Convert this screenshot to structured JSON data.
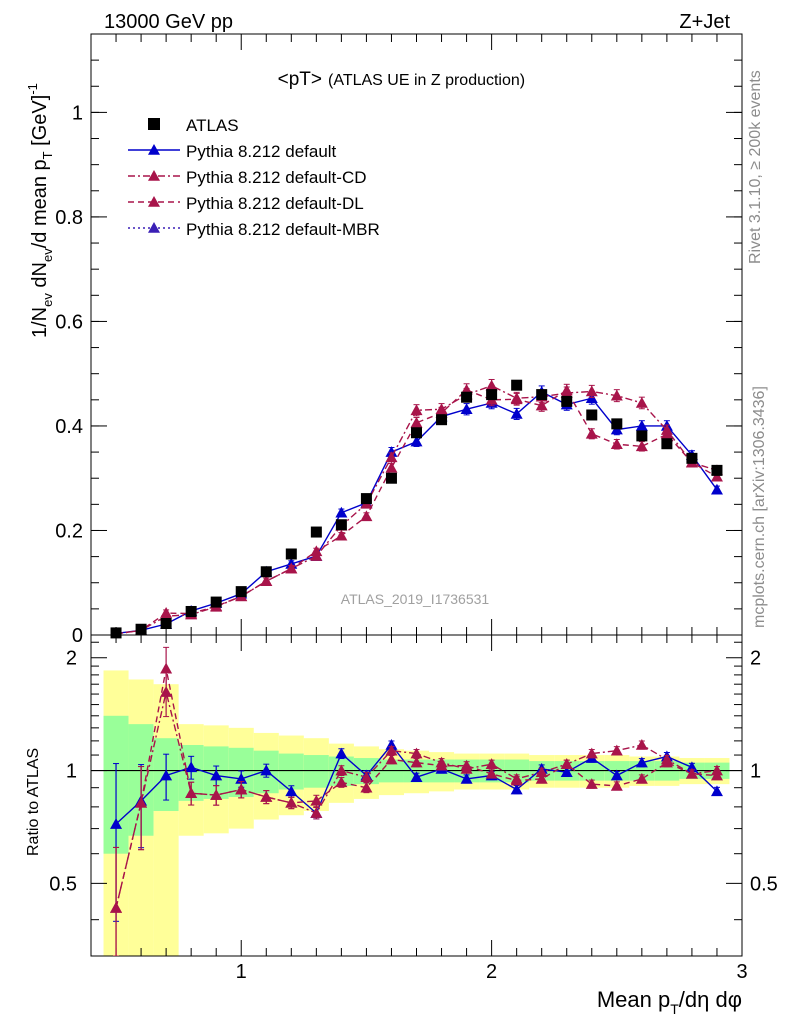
{
  "header": {
    "left": "13000 GeV pp",
    "right": "Z+Jet"
  },
  "side_labels": {
    "rivet": "Rivet 3.1.10, ≥ 200k events",
    "mcplots": "mcplots.cern.ch [arXiv:1306.3436]"
  },
  "chart_data": {
    "type": "scatter",
    "title": "<pT> (ATLAS UE in Z production)",
    "title_main": "<pT>",
    "title_sub": "(ATLAS UE in Z production)",
    "analysis_id": "ATLAS_2019_I1736531",
    "xlabel": "Mean p_T/dη dφ",
    "ylabel": "1/N_ev dN_ev/d mean p_T [GeV]^-1",
    "ratio_ylabel": "Ratio to ATLAS",
    "xlim": [
      0.4,
      3.0
    ],
    "ylim": [
      0,
      1.15
    ],
    "ratio_ylim": [
      0.32,
      2.3
    ],
    "x_ticks": [
      "1",
      "2",
      "3"
    ],
    "y_ticks": [
      "0",
      "0.2",
      "0.4",
      "0.6",
      "0.8",
      "1"
    ],
    "ratio_ticks": [
      "0.5",
      "1",
      "2"
    ],
    "legend_position": "top-left",
    "x": [
      0.5,
      0.6,
      0.7,
      0.8,
      0.9,
      1.0,
      1.1,
      1.2,
      1.3,
      1.4,
      1.5,
      1.6,
      1.7,
      1.8,
      1.9,
      2.0,
      2.1,
      2.2,
      2.3,
      2.4,
      2.5,
      2.6,
      2.7,
      2.8,
      2.9
    ],
    "atlas": {
      "name": "ATLAS",
      "color": "#000000",
      "values": [
        0.004,
        0.011,
        0.022,
        0.045,
        0.063,
        0.083,
        0.121,
        0.155,
        0.197,
        0.211,
        0.261,
        0.3,
        0.387,
        0.412,
        0.455,
        0.46,
        0.478,
        0.46,
        0.447,
        0.421,
        0.404,
        0.381,
        0.366,
        0.338,
        0.315
      ],
      "band_inner": [
        0.4,
        0.33,
        0.22,
        0.17,
        0.16,
        0.15,
        0.13,
        0.11,
        0.1,
        0.09,
        0.08,
        0.07,
        0.07,
        0.07,
        0.07,
        0.07,
        0.07,
        0.06,
        0.06,
        0.06,
        0.06,
        0.06,
        0.06,
        0.05,
        0.05
      ],
      "band_outer": [
        0.85,
        0.75,
        0.7,
        0.33,
        0.32,
        0.3,
        0.26,
        0.24,
        0.22,
        0.18,
        0.16,
        0.14,
        0.13,
        0.12,
        0.11,
        0.11,
        0.11,
        0.1,
        0.1,
        0.1,
        0.1,
        0.09,
        0.09,
        0.08,
        0.08
      ]
    },
    "series": [
      {
        "name": "Pythia 8.212 default",
        "color": "#0000cc",
        "dash": "solid",
        "values": [
          0.003,
          0.009,
          0.021,
          0.046,
          0.061,
          0.079,
          0.121,
          0.136,
          0.151,
          0.234,
          0.253,
          0.35,
          0.37,
          0.418,
          0.432,
          0.444,
          0.423,
          0.465,
          0.441,
          0.453,
          0.393,
          0.4,
          0.4,
          0.344,
          0.278
        ],
        "ratio": [
          0.72,
          0.83,
          0.97,
          1.02,
          0.97,
          0.95,
          1.0,
          0.88,
          0.77,
          1.11,
          0.97,
          1.17,
          0.96,
          1.01,
          0.95,
          0.97,
          0.89,
          1.01,
          0.99,
          1.08,
          0.97,
          1.05,
          1.09,
          1.02,
          0.88
        ]
      },
      {
        "name": "Pythia 8.212 default-CD",
        "color": "#a8144a",
        "dash": "dashdot",
        "values": [
          0.002,
          0.009,
          0.036,
          0.039,
          0.054,
          0.074,
          0.103,
          0.127,
          0.151,
          0.209,
          0.251,
          0.34,
          0.43,
          0.432,
          0.46,
          0.477,
          0.453,
          0.456,
          0.463,
          0.466,
          0.458,
          0.444,
          0.392,
          0.33,
          0.315
        ],
        "ratio": [
          0.43,
          0.82,
          1.62,
          0.87,
          0.86,
          0.89,
          0.85,
          0.82,
          0.77,
          1.0,
          0.96,
          1.13,
          1.11,
          1.05,
          1.01,
          1.04,
          0.95,
          0.99,
          1.04,
          1.11,
          1.13,
          1.17,
          1.07,
          0.98,
          1.0
        ]
      },
      {
        "name": "Pythia 8.212 default-DL",
        "color": "#a8144a",
        "dash": "dashed",
        "values": [
          0.002,
          0.009,
          0.042,
          0.041,
          0.055,
          0.074,
          0.103,
          0.127,
          0.16,
          0.19,
          0.227,
          0.32,
          0.406,
          0.425,
          0.469,
          0.45,
          0.451,
          0.439,
          0.468,
          0.385,
          0.365,
          0.361,
          0.384,
          0.33,
          0.303
        ],
        "ratio": [
          0.43,
          0.82,
          1.87,
          0.87,
          0.86,
          0.89,
          0.85,
          0.82,
          0.83,
          0.93,
          0.9,
          1.07,
          1.05,
          1.03,
          1.03,
          0.98,
          0.94,
          0.95,
          1.04,
          0.92,
          0.91,
          0.95,
          1.05,
          0.98,
          0.97
        ]
      },
      {
        "name": "Pythia 8.212 default-MBR",
        "color": "#3a1fb5",
        "dash": "dotted",
        "values": [],
        "ratio": []
      }
    ],
    "y_err_frac": [
      0.9,
      0.5,
      0.28,
      0.14,
      0.12,
      0.1,
      0.08,
      0.07,
      0.07,
      0.06,
      0.06,
      0.05,
      0.05,
      0.05,
      0.05,
      0.05,
      0.05,
      0.05,
      0.05,
      0.05,
      0.05,
      0.05,
      0.05,
      0.05,
      0.05
    ]
  }
}
